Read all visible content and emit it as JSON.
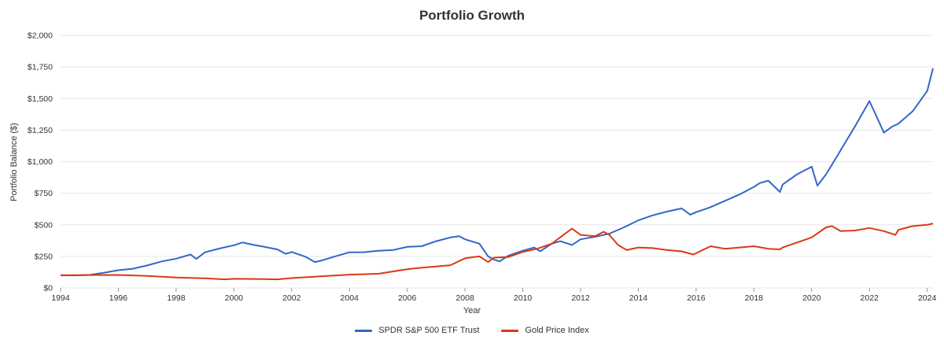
{
  "chart_data": {
    "type": "line",
    "title": "Portfolio Growth",
    "xlabel": "Year",
    "ylabel": "Portfolio Balance ($)",
    "xlim": [
      1994,
      2024.2
    ],
    "ylim": [
      0,
      2000
    ],
    "x_ticks": [
      "1994",
      "1996",
      "1998",
      "2000",
      "2002",
      "2004",
      "2006",
      "2008",
      "2010",
      "2012",
      "2014",
      "2016",
      "2018",
      "2020",
      "2022",
      "2024"
    ],
    "y_ticks": [
      "$0",
      "$250",
      "$500",
      "$750",
      "$1,000",
      "$1,250",
      "$1,500",
      "$1,750",
      "$2,000"
    ],
    "grid": true,
    "legend_position": "bottom-center",
    "series": [
      {
        "name": "SPDR S&P 500 ETF Trust",
        "color": "#3366cc",
        "points": [
          [
            1994.0,
            100
          ],
          [
            1994.5,
            99
          ],
          [
            1995.0,
            103
          ],
          [
            1995.5,
            120
          ],
          [
            1996.0,
            140
          ],
          [
            1996.5,
            152
          ],
          [
            1997.0,
            178
          ],
          [
            1997.5,
            210
          ],
          [
            1998.0,
            232
          ],
          [
            1998.5,
            265
          ],
          [
            1998.7,
            230
          ],
          [
            1999.0,
            282
          ],
          [
            1999.5,
            312
          ],
          [
            2000.0,
            338
          ],
          [
            2000.3,
            360
          ],
          [
            2000.7,
            340
          ],
          [
            2001.0,
            328
          ],
          [
            2001.5,
            305
          ],
          [
            2001.8,
            270
          ],
          [
            2002.0,
            285
          ],
          [
            2002.5,
            245
          ],
          [
            2002.8,
            205
          ],
          [
            2003.0,
            215
          ],
          [
            2003.5,
            250
          ],
          [
            2004.0,
            282
          ],
          [
            2004.5,
            283
          ],
          [
            2005.0,
            295
          ],
          [
            2005.5,
            300
          ],
          [
            2006.0,
            325
          ],
          [
            2006.5,
            330
          ],
          [
            2007.0,
            370
          ],
          [
            2007.5,
            400
          ],
          [
            2007.8,
            410
          ],
          [
            2008.0,
            385
          ],
          [
            2008.5,
            350
          ],
          [
            2008.8,
            250
          ],
          [
            2009.0,
            225
          ],
          [
            2009.2,
            210
          ],
          [
            2009.5,
            255
          ],
          [
            2010.0,
            295
          ],
          [
            2010.4,
            320
          ],
          [
            2010.6,
            290
          ],
          [
            2011.0,
            350
          ],
          [
            2011.3,
            370
          ],
          [
            2011.7,
            340
          ],
          [
            2012.0,
            385
          ],
          [
            2012.5,
            405
          ],
          [
            2013.0,
            430
          ],
          [
            2013.5,
            480
          ],
          [
            2014.0,
            535
          ],
          [
            2014.5,
            575
          ],
          [
            2015.0,
            605
          ],
          [
            2015.5,
            630
          ],
          [
            2015.8,
            580
          ],
          [
            2016.0,
            600
          ],
          [
            2016.5,
            640
          ],
          [
            2017.0,
            690
          ],
          [
            2017.5,
            740
          ],
          [
            2018.0,
            800
          ],
          [
            2018.2,
            830
          ],
          [
            2018.5,
            850
          ],
          [
            2018.9,
            760
          ],
          [
            2019.0,
            820
          ],
          [
            2019.5,
            900
          ],
          [
            2020.0,
            960
          ],
          [
            2020.2,
            810
          ],
          [
            2020.5,
            900
          ],
          [
            2020.9,
            1050
          ],
          [
            2021.0,
            1090
          ],
          [
            2021.5,
            1280
          ],
          [
            2022.0,
            1480
          ],
          [
            2022.2,
            1380
          ],
          [
            2022.5,
            1230
          ],
          [
            2022.8,
            1280
          ],
          [
            2023.0,
            1300
          ],
          [
            2023.5,
            1400
          ],
          [
            2024.0,
            1560
          ],
          [
            2024.2,
            1740
          ]
        ]
      },
      {
        "name": "Gold Price Index",
        "color": "#dc3912",
        "points": [
          [
            1994.0,
            100
          ],
          [
            1995.0,
            102
          ],
          [
            1996.0,
            103
          ],
          [
            1997.0,
            95
          ],
          [
            1998.0,
            82
          ],
          [
            1999.0,
            76
          ],
          [
            1999.7,
            68
          ],
          [
            2000.0,
            72
          ],
          [
            2001.0,
            70
          ],
          [
            2001.5,
            68
          ],
          [
            2002.0,
            78
          ],
          [
            2003.0,
            92
          ],
          [
            2004.0,
            105
          ],
          [
            2005.0,
            112
          ],
          [
            2006.0,
            148
          ],
          [
            2006.5,
            160
          ],
          [
            2007.0,
            170
          ],
          [
            2007.5,
            180
          ],
          [
            2008.0,
            235
          ],
          [
            2008.5,
            250
          ],
          [
            2008.8,
            205
          ],
          [
            2009.0,
            240
          ],
          [
            2009.5,
            245
          ],
          [
            2010.0,
            285
          ],
          [
            2010.5,
            310
          ],
          [
            2011.0,
            350
          ],
          [
            2011.7,
            470
          ],
          [
            2012.0,
            420
          ],
          [
            2012.5,
            410
          ],
          [
            2012.8,
            445
          ],
          [
            2013.0,
            420
          ],
          [
            2013.3,
            340
          ],
          [
            2013.6,
            300
          ],
          [
            2014.0,
            320
          ],
          [
            2014.5,
            315
          ],
          [
            2015.0,
            300
          ],
          [
            2015.5,
            290
          ],
          [
            2015.9,
            265
          ],
          [
            2016.0,
            275
          ],
          [
            2016.5,
            330
          ],
          [
            2017.0,
            310
          ],
          [
            2017.5,
            320
          ],
          [
            2018.0,
            330
          ],
          [
            2018.5,
            310
          ],
          [
            2018.9,
            305
          ],
          [
            2019.0,
            320
          ],
          [
            2019.5,
            360
          ],
          [
            2020.0,
            400
          ],
          [
            2020.5,
            480
          ],
          [
            2020.7,
            490
          ],
          [
            2021.0,
            450
          ],
          [
            2021.5,
            455
          ],
          [
            2022.0,
            475
          ],
          [
            2022.5,
            450
          ],
          [
            2022.9,
            420
          ],
          [
            2023.0,
            460
          ],
          [
            2023.5,
            490
          ],
          [
            2024.0,
            500
          ],
          [
            2024.2,
            510
          ]
        ]
      }
    ]
  }
}
